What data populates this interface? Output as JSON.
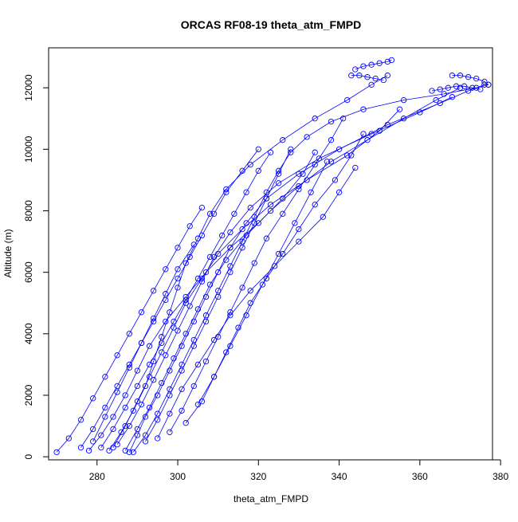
{
  "chart_data": {
    "type": "scatter",
    "title": "ORCAS RF08-19 theta_atm_FMPD",
    "xlabel": "theta_atm_FMPD",
    "ylabel": "Altitude (m)",
    "xlim": [
      268,
      378
    ],
    "ylim": [
      -100,
      13300
    ],
    "x_ticks": [
      280,
      300,
      320,
      340,
      360,
      380
    ],
    "y_ticks": [
      0,
      2000,
      4000,
      6000,
      8000,
      10000,
      12000
    ],
    "grid": false,
    "legend": "none",
    "colors": {
      "series": "#0000ff",
      "axis": "#000000",
      "background": "#ffffff"
    },
    "marker": "open-circle",
    "line_style": "lines-and-points",
    "series": [
      {
        "x": [
          283,
          286,
          289,
          292,
          294,
          296,
          298,
          300,
          302,
          305,
          308,
          312,
          318,
          326,
          334,
          342,
          348,
          352
        ],
        "y": [
          200,
          800,
          1500,
          2300,
          3100,
          3900,
          4700,
          5500,
          6300,
          7100,
          7900,
          8700,
          9500,
          10300,
          11000,
          11600,
          12100,
          12400
        ]
      },
      {
        "x": [
          288,
          290,
          292,
          295,
          298,
          301,
          304,
          307,
          310,
          313,
          317,
          322,
          330,
          340,
          352,
          365,
          372,
          376
        ],
        "y": [
          150,
          700,
          1300,
          2000,
          2800,
          3600,
          4400,
          5200,
          6000,
          6800,
          7600,
          8400,
          9200,
          10000,
          10800,
          11500,
          11900,
          12100
        ]
      },
      {
        "x": [
          278,
          281,
          284,
          287,
          290,
          293,
          297,
          302,
          307,
          313,
          320,
          326,
          331,
          334
        ],
        "y": [
          200,
          700,
          1300,
          2000,
          2800,
          3600,
          4400,
          5200,
          6000,
          6800,
          7600,
          8400,
          9200,
          9900
        ]
      },
      {
        "x": [
          302,
          306,
          309,
          312,
          315,
          318,
          322,
          326,
          330,
          334,
          339,
          343,
          346
        ],
        "y": [
          1100,
          1800,
          2600,
          3400,
          4200,
          5000,
          5800,
          6600,
          7400,
          8200,
          9000,
          9800,
          10500
        ]
      },
      {
        "x": [
          285,
          288,
          291,
          294,
          297,
          300,
          303,
          306,
          309,
          313,
          318,
          325,
          335,
          348,
          360,
          368
        ],
        "y": [
          400,
          1000,
          1700,
          2500,
          3300,
          4100,
          4900,
          5700,
          6500,
          7300,
          8100,
          8900,
          9700,
          10500,
          11200,
          11700
        ]
      },
      {
        "x": [
          276,
          279,
          282,
          285,
          288,
          291,
          294,
          297,
          300,
          303,
          306,
          309,
          312,
          316,
          320
        ],
        "y": [
          300,
          900,
          1600,
          2300,
          3000,
          3700,
          4400,
          5100,
          5800,
          6500,
          7200,
          7900,
          8600,
          9300,
          10000
        ]
      },
      {
        "x": [
          292,
          295,
          298,
          301,
          304,
          307,
          310,
          313,
          316,
          319,
          322,
          325,
          328
        ],
        "y": [
          500,
          1200,
          2000,
          2800,
          3600,
          4400,
          5200,
          6000,
          6800,
          7600,
          8400,
          9200,
          10000
        ]
      },
      {
        "x": [
          298,
          301,
          304,
          307,
          310,
          313,
          316,
          319,
          322,
          326,
          330,
          334,
          338,
          341
        ],
        "y": [
          800,
          1500,
          2300,
          3100,
          3900,
          4700,
          5500,
          6300,
          7100,
          7900,
          8700,
          9500,
          10300,
          11000
        ]
      },
      {
        "x": [
          270,
          273,
          276,
          279,
          282,
          285,
          288,
          291,
          294,
          297,
          300,
          303,
          306
        ],
        "y": [
          150,
          600,
          1200,
          1900,
          2600,
          3300,
          4000,
          4700,
          5400,
          6100,
          6800,
          7500,
          8100
        ]
      },
      {
        "x": [
          281,
          284,
          287,
          290,
          293,
          296,
          299,
          302,
          305,
          308,
          311,
          314,
          317,
          320,
          323
        ],
        "y": [
          300,
          900,
          1600,
          2300,
          3000,
          3700,
          4400,
          5100,
          5800,
          6500,
          7200,
          7900,
          8600,
          9300,
          9900
        ]
      },
      {
        "x": [
          289,
          292,
          295,
          298,
          301,
          304,
          307,
          310,
          313,
          316,
          319,
          322,
          325,
          328,
          332,
          338,
          346,
          356,
          366,
          374,
          377
        ],
        "y": [
          150,
          700,
          1400,
          2200,
          3000,
          3800,
          4600,
          5400,
          6200,
          7000,
          7800,
          8600,
          9300,
          9900,
          10400,
          10900,
          11300,
          11600,
          11800,
          12000,
          12100
        ]
      },
      {
        "x": [
          295,
          298,
          301,
          305,
          309,
          313,
          318,
          324,
          330,
          336,
          340,
          344
        ],
        "y": [
          600,
          1400,
          2200,
          3000,
          3800,
          4600,
          5400,
          6200,
          7000,
          7800,
          8600,
          9400
        ]
      },
      {
        "x": [
          284,
          287,
          290,
          293,
          296,
          299,
          302,
          306,
          310,
          316,
          323,
          332,
          342,
          350,
          355
        ],
        "y": [
          300,
          1000,
          1800,
          2600,
          3400,
          4200,
          5000,
          5800,
          6600,
          7400,
          8200,
          9000,
          9800,
          10600,
          11300
        ]
      },
      {
        "x": [
          287,
          290,
          293,
          296,
          299,
          302,
          305,
          308,
          312,
          317,
          323,
          330,
          338,
          347,
          356,
          364,
          370
        ],
        "y": [
          200,
          900,
          1600,
          2400,
          3200,
          4000,
          4800,
          5600,
          6400,
          7200,
          8000,
          8800,
          9600,
          10300,
          11000,
          11600,
          12000
        ]
      },
      {
        "x": [
          305,
          309,
          313,
          317,
          321,
          325,
          329,
          333,
          337
        ],
        "y": [
          1700,
          2600,
          3600,
          4600,
          5600,
          6600,
          7600,
          8600,
          9600
        ]
      },
      {
        "x": [
          279,
          282,
          285,
          288,
          291,
          294,
          297,
          300,
          304
        ],
        "y": [
          500,
          1300,
          2100,
          2900,
          3700,
          4500,
          5300,
          6100,
          6900
        ]
      }
    ],
    "tracks": [
      {
        "x": [
          344,
          346,
          348,
          350,
          352,
          353
        ],
        "y": [
          12600,
          12700,
          12750,
          12800,
          12850,
          12900
        ]
      },
      {
        "x": [
          368,
          370,
          372,
          374,
          376,
          377
        ],
        "y": [
          12400,
          12400,
          12350,
          12300,
          12200,
          12100
        ]
      },
      {
        "x": [
          343,
          345,
          347,
          349,
          351
        ],
        "y": [
          12400,
          12400,
          12350,
          12300,
          12250
        ]
      },
      {
        "x": [
          363,
          365,
          367,
          369,
          371,
          373,
          375
        ],
        "y": [
          11900,
          11950,
          12000,
          12050,
          12050,
          12000,
          11950
        ]
      }
    ]
  }
}
